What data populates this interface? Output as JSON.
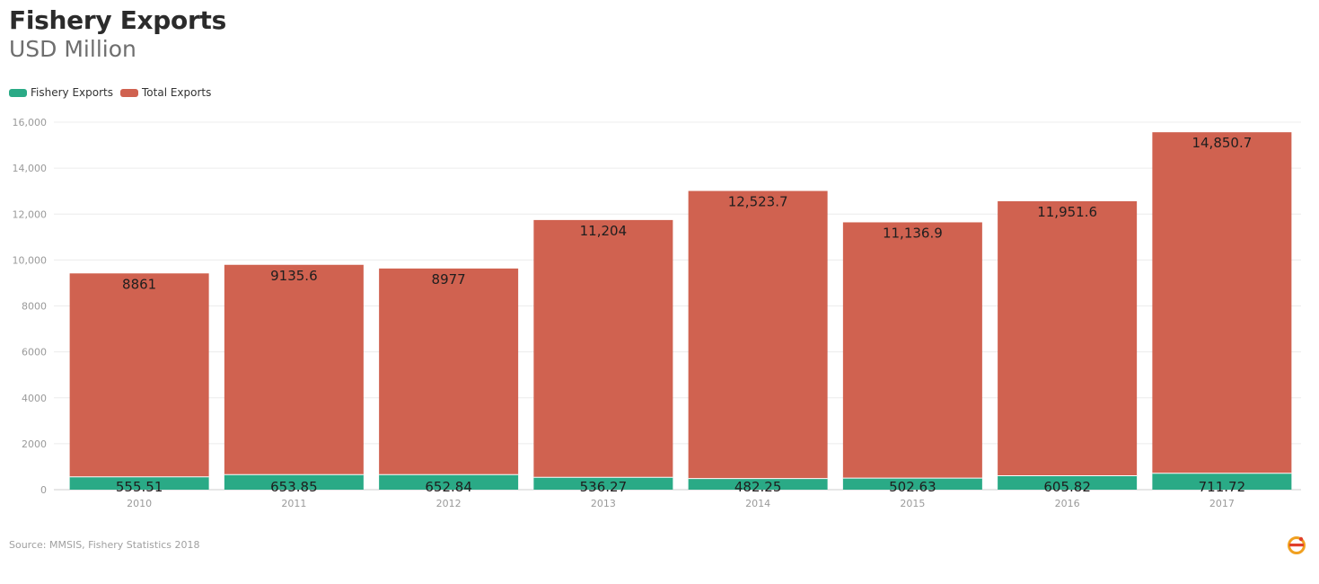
{
  "header": {
    "title": "Fishery Exports",
    "subtitle": "USD Million"
  },
  "legend": [
    {
      "label": "Fishery Exports",
      "color": "#2aaa86"
    },
    {
      "label": "Total Exports",
      "color": "#d06250"
    }
  ],
  "footer": {
    "source": "Source: MMSIS, Fishery Statistics 2018",
    "logo_icon": "logo-icon"
  },
  "chart_data": {
    "type": "bar",
    "stacked": true,
    "categories": [
      "2010",
      "2011",
      "2012",
      "2013",
      "2014",
      "2015",
      "2016",
      "2017"
    ],
    "series": [
      {
        "name": "Fishery Exports",
        "color": "#2aaa86",
        "values": [
          555.51,
          653.85,
          652.84,
          536.27,
          482.25,
          502.63,
          605.82,
          711.72
        ],
        "labels": [
          "555.51",
          "653.85",
          "652.84",
          "536.27",
          "482.25",
          "502.63",
          "605.82",
          "711.72"
        ]
      },
      {
        "name": "Total Exports",
        "color": "#d06250",
        "values": [
          8861,
          9135.6,
          8977,
          11204,
          12523.7,
          11136.9,
          11951.6,
          14850.7
        ],
        "labels": [
          "8861",
          "9135.6",
          "8977",
          "11,204",
          "12,523.7",
          "11,136.9",
          "11,951.6",
          "14,850.7"
        ]
      }
    ],
    "ylim": [
      0,
      16000
    ],
    "yticks": [
      0,
      2000,
      4000,
      6000,
      8000,
      10000,
      12000,
      14000,
      16000
    ],
    "ytick_labels": [
      "0",
      "2000",
      "4000",
      "6000",
      "8000",
      "10,000",
      "12,000",
      "14,000",
      "16,000"
    ],
    "grid": true,
    "legend_position": "top-left"
  }
}
